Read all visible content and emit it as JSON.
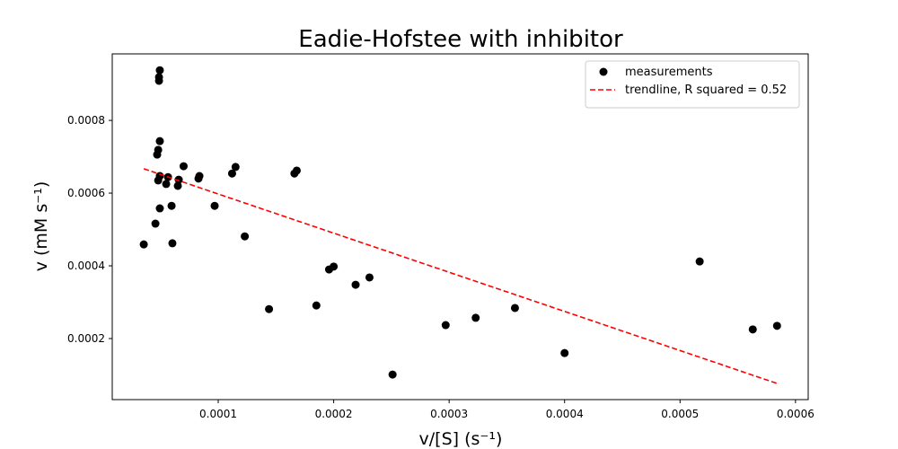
{
  "chart_data": {
    "type": "scatter",
    "title": "Eadie-Hofstee with inhibitor",
    "x_label": "v/[S] (s⁻¹)",
    "y_label": "v (mM s⁻¹)",
    "xlim": [
      8.2e-06,
      0.000611
    ],
    "ylim": [
      3.2e-05,
      0.000983
    ],
    "xticks": [
      0.0001,
      0.0002,
      0.0003,
      0.0004,
      0.0005,
      0.0006
    ],
    "yticks": [
      0.0002,
      0.0004,
      0.0006,
      0.0008
    ],
    "legend": "upper right",
    "series": [
      {
        "name": "measurements",
        "type": "scatter",
        "color": "#000000",
        "x": [
          3.55e-05,
          4.94e-05,
          4.87e-05,
          4.87e-05,
          4.94e-05,
          4.8e-05,
          4.71e-05,
          4.94e-05,
          4.8e-05,
          5.65e-05,
          5.49e-05,
          7e-05,
          6.58e-05,
          6.5e-05,
          8.29e-05,
          8.37e-05,
          4.56e-05,
          4.94e-05,
          5.96e-05,
          6.03e-05,
          9.69e-05,
          0.000112,
          0.000115,
          0.000123,
          0.000144,
          0.000166,
          0.000168,
          0.000185,
          0.000196,
          0.0002,
          0.000219,
          0.000231,
          0.000251,
          0.000297,
          0.000323,
          0.000357,
          0.0004,
          0.000517,
          0.000563,
          0.000584
        ],
        "values": [
          0.000459,
          0.000938,
          0.000919,
          0.000909,
          0.000743,
          0.000719,
          0.000706,
          0.000647,
          0.000635,
          0.000644,
          0.000625,
          0.000674,
          0.000637,
          0.00062,
          0.00064,
          0.000647,
          0.000516,
          0.000558,
          0.000565,
          0.000462,
          0.000565,
          0.000654,
          0.000672,
          0.000481,
          0.000281,
          0.000654,
          0.000662,
          0.000291,
          0.00039,
          0.000398,
          0.000348,
          0.000368,
          0.000101,
          0.000237,
          0.000257,
          0.000284,
          0.00016,
          0.000412,
          0.000225,
          0.000235
        ]
      },
      {
        "name": "trendline, R squared = 0.52",
        "type": "line",
        "style": "dashed",
        "color": "#ff0000",
        "x": [
          3.55e-05,
          0.000584
        ],
        "values": [
          0.000667,
          7.65e-05
        ]
      }
    ]
  }
}
